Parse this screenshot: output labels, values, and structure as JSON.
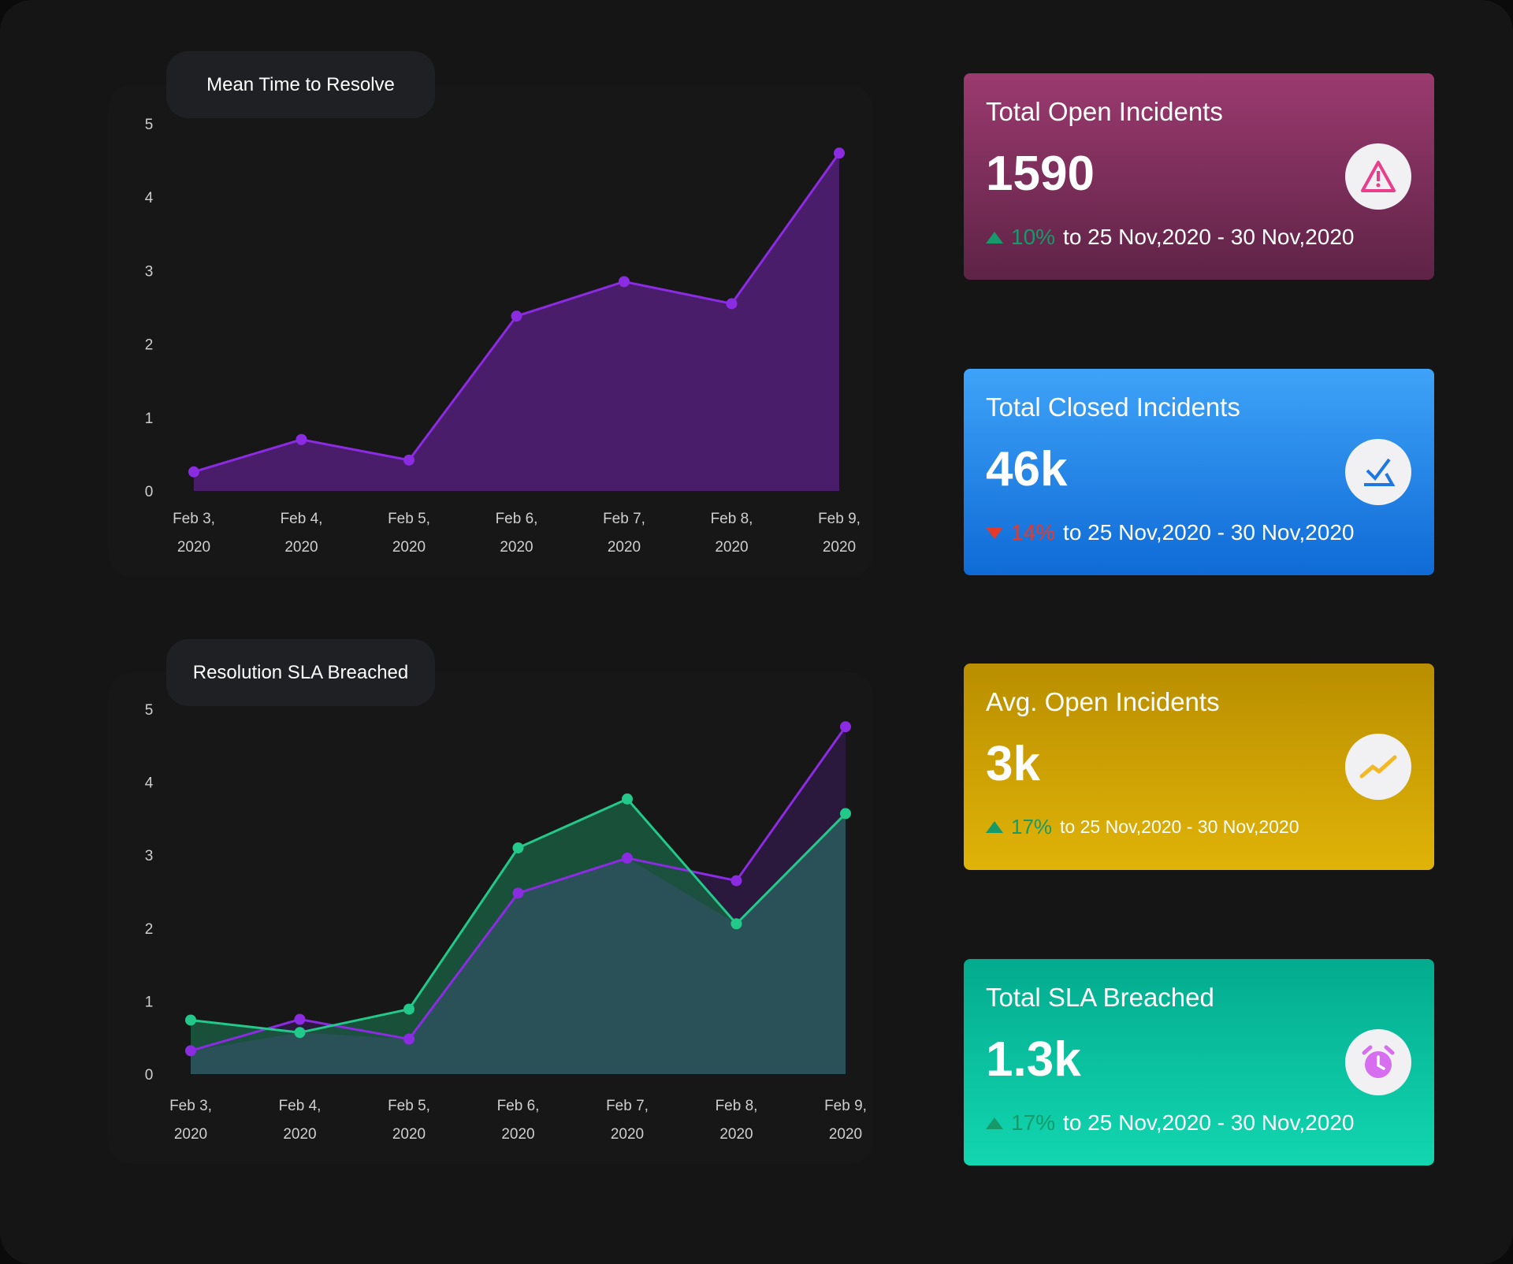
{
  "chart_data": [
    {
      "type": "area",
      "title": "Mean Time to Resolve",
      "categories": [
        [
          "Feb 3,",
          "2020"
        ],
        [
          "Feb 4,",
          "2020"
        ],
        [
          "Feb 5,",
          "2020"
        ],
        [
          "Feb 6,",
          "2020"
        ],
        [
          "Feb 7,",
          "2020"
        ],
        [
          "Feb 8,",
          "2020"
        ],
        [
          "Feb 9,",
          "2020"
        ]
      ],
      "yticks": [
        "0",
        "1",
        "2",
        "3",
        "4",
        "5"
      ],
      "ylim": [
        0,
        5
      ],
      "grid": false,
      "series": [
        {
          "color": "#8b2be2",
          "fill": "#4a1d6b",
          "values": [
            0.26,
            0.7,
            0.42,
            2.38,
            2.85,
            2.55,
            4.6
          ]
        }
      ]
    },
    {
      "type": "area",
      "title": "Resolution SLA Breached",
      "categories": [
        [
          "Feb 3,",
          "2020"
        ],
        [
          "Feb 4,",
          "2020"
        ],
        [
          "Feb 5,",
          "2020"
        ],
        [
          "Feb 6,",
          "2020"
        ],
        [
          "Feb 7,",
          "2020"
        ],
        [
          "Feb 8,",
          "2020"
        ],
        [
          "Feb 9,",
          "2020"
        ]
      ],
      "yticks": [
        "0",
        "1",
        "2",
        "3",
        "4",
        "5"
      ],
      "ylim": [
        0,
        5
      ],
      "grid": false,
      "series": [
        {
          "color": "#8b2be2",
          "fill": "#2e1a44",
          "values": [
            0.32,
            0.75,
            0.48,
            2.48,
            2.96,
            2.65,
            4.76
          ]
        },
        {
          "color": "#22c98a",
          "fill": "#1a5a40",
          "values": [
            0.74,
            0.57,
            0.89,
            3.1,
            3.77,
            2.06,
            3.57
          ]
        }
      ]
    }
  ],
  "cards": [
    {
      "title": "Total Open Incidents",
      "value": "1590",
      "change": "10%",
      "direction": "up",
      "period": "to 25 Nov,2020 - 30 Nov,2020",
      "icon": "warning-icon",
      "color": "#9a3a6e"
    },
    {
      "title": "Total Closed Incidents",
      "value": "46k",
      "change": "14%",
      "direction": "down",
      "period": "to 25 Nov,2020 - 30 Nov,2020",
      "icon": "checklist-icon",
      "color": "#2f8ff0"
    },
    {
      "title": "Avg. Open Incidents",
      "value": "3k",
      "change": "17%",
      "direction": "up",
      "period": "to 25 Nov,2020 - 30 Nov,2020",
      "icon": "trend-up-icon",
      "color": "#d4a400"
    },
    {
      "title": "Total SLA Breached",
      "value": "1.3k",
      "change": "17%",
      "direction": "up",
      "period": "to 25 Nov,2020 - 30 Nov,2020",
      "icon": "alarm-clock-icon",
      "color": "#0fc9a0"
    }
  ]
}
